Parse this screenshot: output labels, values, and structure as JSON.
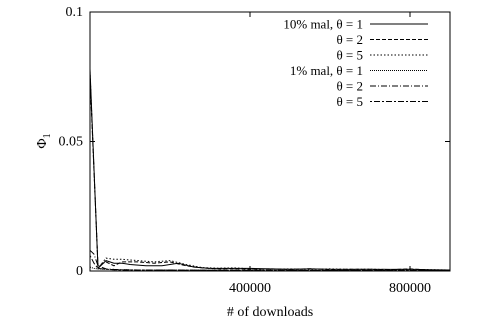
{
  "chart_data": {
    "type": "line",
    "xlabel": "# of downloads",
    "ylabel": "Φ",
    "ylabel_subscript": "1",
    "xlim": [
      0,
      900000
    ],
    "ylim": [
      0,
      0.1
    ],
    "x_ticks": [
      {
        "value": 400000,
        "label": "400000"
      },
      {
        "value": 800000,
        "label": "800000"
      }
    ],
    "y_ticks": [
      {
        "value": 0,
        "label": "0"
      },
      {
        "value": 0.05,
        "label": "0.05"
      },
      {
        "value": 0.1,
        "label": "0.1"
      }
    ],
    "grid": false,
    "legend_placement": "top-right",
    "series": [
      {
        "name": "10% mal, θ = 1",
        "dash": "",
        "x": [
          0,
          20000,
          40000,
          60000,
          80000,
          100000,
          140000,
          180000,
          220000,
          260000,
          300000,
          350000,
          400000,
          450000,
          500000,
          550000,
          600000,
          650000,
          700000,
          750000,
          800000,
          850000,
          900000
        ],
        "y": [
          0.078,
          0.001,
          0.004,
          0.003,
          0.003,
          0.0025,
          0.002,
          0.002,
          0.003,
          0.0015,
          0.001,
          0.001,
          0.001,
          0.0008,
          0.0007,
          0.0008,
          0.0007,
          0.0006,
          0.0007,
          0.0006,
          0.0007,
          0.0005,
          0.0004
        ]
      },
      {
        "name": "θ = 2",
        "dash": "4,2",
        "x": [
          0,
          20000,
          40000,
          60000,
          80000,
          120000,
          160000,
          200000,
          240000,
          280000,
          320000,
          360000,
          400000,
          450000,
          500000,
          550000,
          600000,
          650000,
          700000,
          750000,
          800000,
          850000,
          900000
        ],
        "y": [
          0.075,
          0.002,
          0.0035,
          0.002,
          0.0035,
          0.0035,
          0.003,
          0.0035,
          0.002,
          0.0012,
          0.0008,
          0.0009,
          0.0007,
          0.0008,
          0.0006,
          0.0009,
          0.0005,
          0.0007,
          0.0006,
          0.0005,
          0.0008,
          0.0004,
          0.0004
        ]
      },
      {
        "name": "θ = 5",
        "dash": "1.5,2",
        "x": [
          0,
          20000,
          40000,
          60000,
          80000,
          120000,
          160000,
          200000,
          240000,
          280000,
          320000,
          360000,
          400000,
          450000,
          500000,
          550000,
          600000,
          650000,
          700000,
          750000,
          800000,
          850000,
          900000
        ],
        "y": [
          0.077,
          0.001,
          0.005,
          0.0045,
          0.0045,
          0.004,
          0.0035,
          0.004,
          0.0025,
          0.0013,
          0.0011,
          0.0012,
          0.0009,
          0.0007,
          0.0008,
          0.0006,
          0.0008,
          0.0006,
          0.0007,
          0.0005,
          0.0006,
          0.0005,
          0.0004
        ]
      },
      {
        "name": "1% mal, θ = 1",
        "dash": "1,1",
        "x": [
          0,
          10000,
          20000,
          40000,
          60000,
          80000,
          120000,
          200000,
          300000,
          400000,
          500000,
          600000,
          700000,
          800000,
          900000
        ],
        "y": [
          0.0015,
          0.001,
          0.0008,
          0.0006,
          0.0005,
          0.0005,
          0.0004,
          0.0004,
          0.0003,
          0.0003,
          0.0003,
          0.0002,
          0.0002,
          0.0002,
          0.0002
        ]
      },
      {
        "name": "θ = 2",
        "dash": "6,2,1,2",
        "x": [
          0,
          10000,
          20000,
          40000,
          60000,
          80000,
          120000,
          200000,
          300000,
          400000,
          500000,
          600000,
          700000,
          800000,
          900000
        ],
        "y": [
          0.008,
          0.0065,
          0.002,
          0.0008,
          0.0006,
          0.0005,
          0.0004,
          0.0004,
          0.0003,
          0.0003,
          0.0003,
          0.0002,
          0.0002,
          0.0002,
          0.0002
        ]
      },
      {
        "name": "θ = 5",
        "dash": "2,2,6,2",
        "x": [
          0,
          10000,
          20000,
          40000,
          60000,
          80000,
          120000,
          200000,
          300000,
          400000,
          500000,
          600000,
          700000,
          800000,
          900000
        ],
        "y": [
          0.006,
          0.003,
          0.001,
          0.0007,
          0.0005,
          0.0004,
          0.0004,
          0.0003,
          0.0003,
          0.0003,
          0.0002,
          0.0002,
          0.0002,
          0.0002,
          0.0002
        ]
      }
    ]
  }
}
